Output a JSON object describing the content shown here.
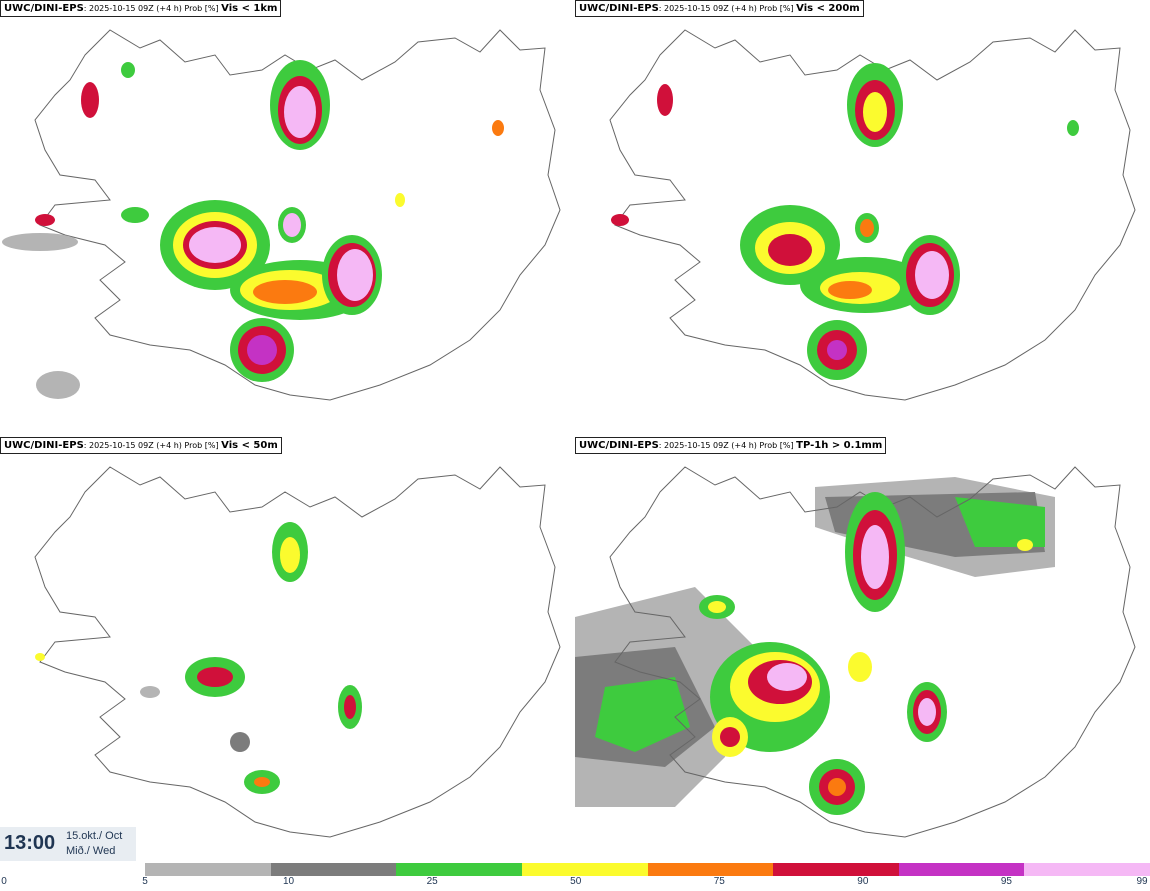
{
  "panels": [
    {
      "product": "UWC/DINI-EPS",
      "meta": ": 2025-10-15 09Z (+4 h) Prob [%] ",
      "param": "Vis < 1km"
    },
    {
      "product": "UWC/DINI-EPS",
      "meta": ": 2025-10-15 09Z (+4 h) Prob [%] ",
      "param": "Vis < 200m"
    },
    {
      "product": "UWC/DINI-EPS",
      "meta": ": 2025-10-15 09Z (+4 h) Prob [%] ",
      "param": "Vis < 50m"
    },
    {
      "product": "UWC/DINI-EPS",
      "meta": ": 2025-10-15 09Z (+4 h) Prob [%] ",
      "param": "TP-1h > 0.1mm"
    }
  ],
  "valid_time": {
    "time": "13:00",
    "date_line": "15.okt./ Oct",
    "day_line": "Mið./ Wed"
  },
  "colorbar": {
    "ticks": [
      "0",
      "5",
      "10",
      "25",
      "50",
      "75",
      "90",
      "95",
      "99"
    ],
    "colors": [
      "#b4b4b4",
      "#7c7c7c",
      "#3ecb3e",
      "#fbfb2e",
      "#fb7a10",
      "#d0103a",
      "#c432c4",
      "#f5b8f5"
    ]
  }
}
